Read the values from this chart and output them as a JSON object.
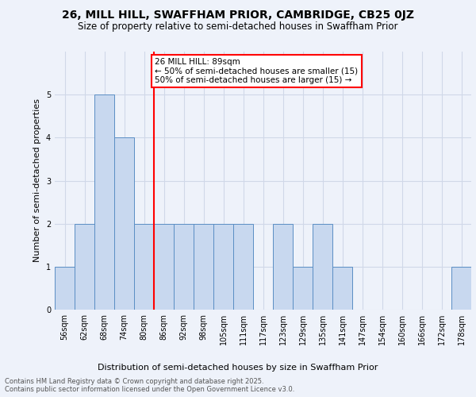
{
  "title1": "26, MILL HILL, SWAFFHAM PRIOR, CAMBRIDGE, CB25 0JZ",
  "title2": "Size of property relative to semi-detached houses in Swaffham Prior",
  "xlabel": "Distribution of semi-detached houses by size in Swaffham Prior",
  "ylabel": "Number of semi-detached properties",
  "categories": [
    "56sqm",
    "62sqm",
    "68sqm",
    "74sqm",
    "80sqm",
    "86sqm",
    "92sqm",
    "98sqm",
    "105sqm",
    "111sqm",
    "117sqm",
    "123sqm",
    "129sqm",
    "135sqm",
    "141sqm",
    "147sqm",
    "154sqm",
    "160sqm",
    "166sqm",
    "172sqm",
    "178sqm"
  ],
  "values": [
    1,
    2,
    5,
    4,
    2,
    2,
    2,
    2,
    2,
    2,
    0,
    2,
    1,
    2,
    1,
    0,
    0,
    0,
    0,
    0,
    1
  ],
  "bar_color": "#c8d8ef",
  "bar_edge_color": "#5b8ec4",
  "red_line_index": 5,
  "annotation_text": "26 MILL HILL: 89sqm\n← 50% of semi-detached houses are smaller (15)\n50% of semi-detached houses are larger (15) →",
  "footer": "Contains HM Land Registry data © Crown copyright and database right 2025.\nContains public sector information licensed under the Open Government Licence v3.0.",
  "ylim": [
    0,
    6
  ],
  "yticks": [
    0,
    1,
    2,
    3,
    4,
    5
  ],
  "background_color": "#eef2fa",
  "grid_color": "#d0d8e8",
  "title1_fontsize": 10,
  "title2_fontsize": 8.5,
  "ylabel_fontsize": 8,
  "xlabel_fontsize": 8,
  "tick_fontsize": 7,
  "annotation_fontsize": 7.5,
  "footer_fontsize": 6
}
